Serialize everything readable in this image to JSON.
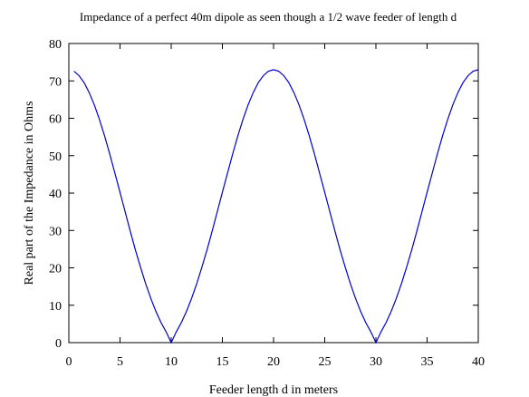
{
  "chart_data": {
    "type": "line",
    "title": "Impedance of a perfect 40m dipole as seen though a 1/2 wave feeder of length d",
    "xlabel": "Feeder length d in meters",
    "ylabel": "Real part of the Impedance in Ohms",
    "xlim": [
      0,
      40
    ],
    "ylim": [
      0,
      80
    ],
    "xticks": [
      0,
      5,
      10,
      15,
      20,
      25,
      30,
      35,
      40
    ],
    "yticks": [
      0,
      10,
      20,
      30,
      40,
      50,
      60,
      70,
      80
    ],
    "grid": false,
    "legend": "none",
    "series_color": "#0000cc",
    "series": [
      {
        "x": [
          0.5,
          1,
          1.5,
          2,
          2.5,
          3,
          3.5,
          4,
          4.5,
          5,
          5.5,
          6,
          6.5,
          7,
          7.5,
          8,
          8.5,
          9,
          9.5,
          10,
          10.5,
          11,
          11.5,
          12,
          12.5,
          13,
          13.5,
          14,
          14.5,
          15,
          15.5,
          16,
          16.5,
          17,
          17.5,
          18,
          18.5,
          19,
          19.5,
          20,
          20.5,
          21,
          21.5,
          22,
          22.5,
          23,
          23.5,
          24,
          24.5,
          25,
          25.5,
          26,
          26.5,
          27,
          27.5,
          28,
          28.5,
          29,
          29.5,
          30,
          30.5,
          31,
          31.5,
          32,
          32.5,
          33,
          33.5,
          34,
          34.5,
          35,
          35.5,
          36,
          36.5,
          37,
          37.5,
          38,
          38.5,
          39,
          39.5,
          40
        ],
        "y": [
          72.6,
          71.4,
          69.5,
          66.8,
          63.5,
          59.6,
          55.2,
          50.4,
          45.3,
          40.2,
          35.0,
          29.8,
          24.8,
          20.2,
          15.8,
          11.9,
          8.4,
          5.4,
          2.9,
          0.0,
          2.9,
          5.4,
          8.4,
          11.9,
          15.8,
          20.2,
          24.8,
          29.8,
          35.0,
          40.2,
          45.3,
          50.4,
          55.2,
          59.6,
          63.5,
          66.8,
          69.5,
          71.4,
          72.6,
          73.0,
          72.6,
          71.4,
          69.5,
          66.8,
          63.5,
          59.6,
          55.2,
          50.4,
          45.3,
          40.2,
          35.0,
          29.8,
          24.8,
          20.2,
          15.8,
          11.9,
          8.4,
          5.4,
          2.9,
          0.0,
          2.9,
          5.4,
          8.4,
          11.9,
          15.8,
          20.2,
          24.8,
          29.8,
          35.0,
          40.2,
          45.3,
          50.4,
          55.2,
          59.6,
          63.5,
          66.8,
          69.5,
          71.4,
          72.6,
          73.0
        ]
      }
    ]
  }
}
